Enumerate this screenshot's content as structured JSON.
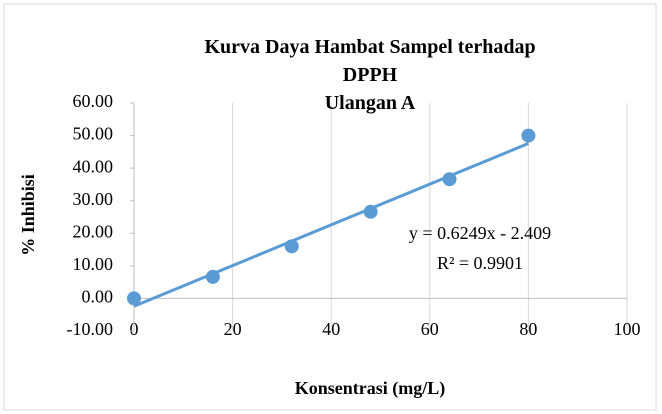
{
  "chart_data": {
    "type": "scatter",
    "title": "Kurva Daya Hambat Sampel terhadap DPPH",
    "subtitle": "Ulangan A",
    "x_label": "Konsentrasi (mg/L)",
    "y_label": "% Inhibisi",
    "x": [
      0,
      16,
      32,
      48,
      64,
      80
    ],
    "series": [
      {
        "name": "Ulangan A",
        "color": "#5b9bd5",
        "values": [
          0,
          6.6,
          16,
          26.6,
          36.6,
          50
        ]
      }
    ],
    "trendline": {
      "slope": 0.6249,
      "intercept": -2.409,
      "equation": "y = 0.6249x - 2.409",
      "r2": "R² = 0.9901",
      "color": "#5b9bd5"
    },
    "xlim": [
      0,
      100
    ],
    "xticks": [
      0,
      20,
      40,
      60,
      80,
      100
    ],
    "ylim": [
      -10,
      60
    ],
    "yticks": [
      {
        "value": -10,
        "label": "-10.00"
      },
      {
        "value": 0,
        "label": "0.00"
      },
      {
        "value": 10,
        "label": "10.00"
      },
      {
        "value": 20,
        "label": "20.00"
      },
      {
        "value": 30,
        "label": "30.00"
      },
      {
        "value": 40,
        "label": "40.00"
      },
      {
        "value": 50,
        "label": "50.00"
      },
      {
        "value": 60,
        "label": "60.00"
      }
    ],
    "grid": "x"
  }
}
